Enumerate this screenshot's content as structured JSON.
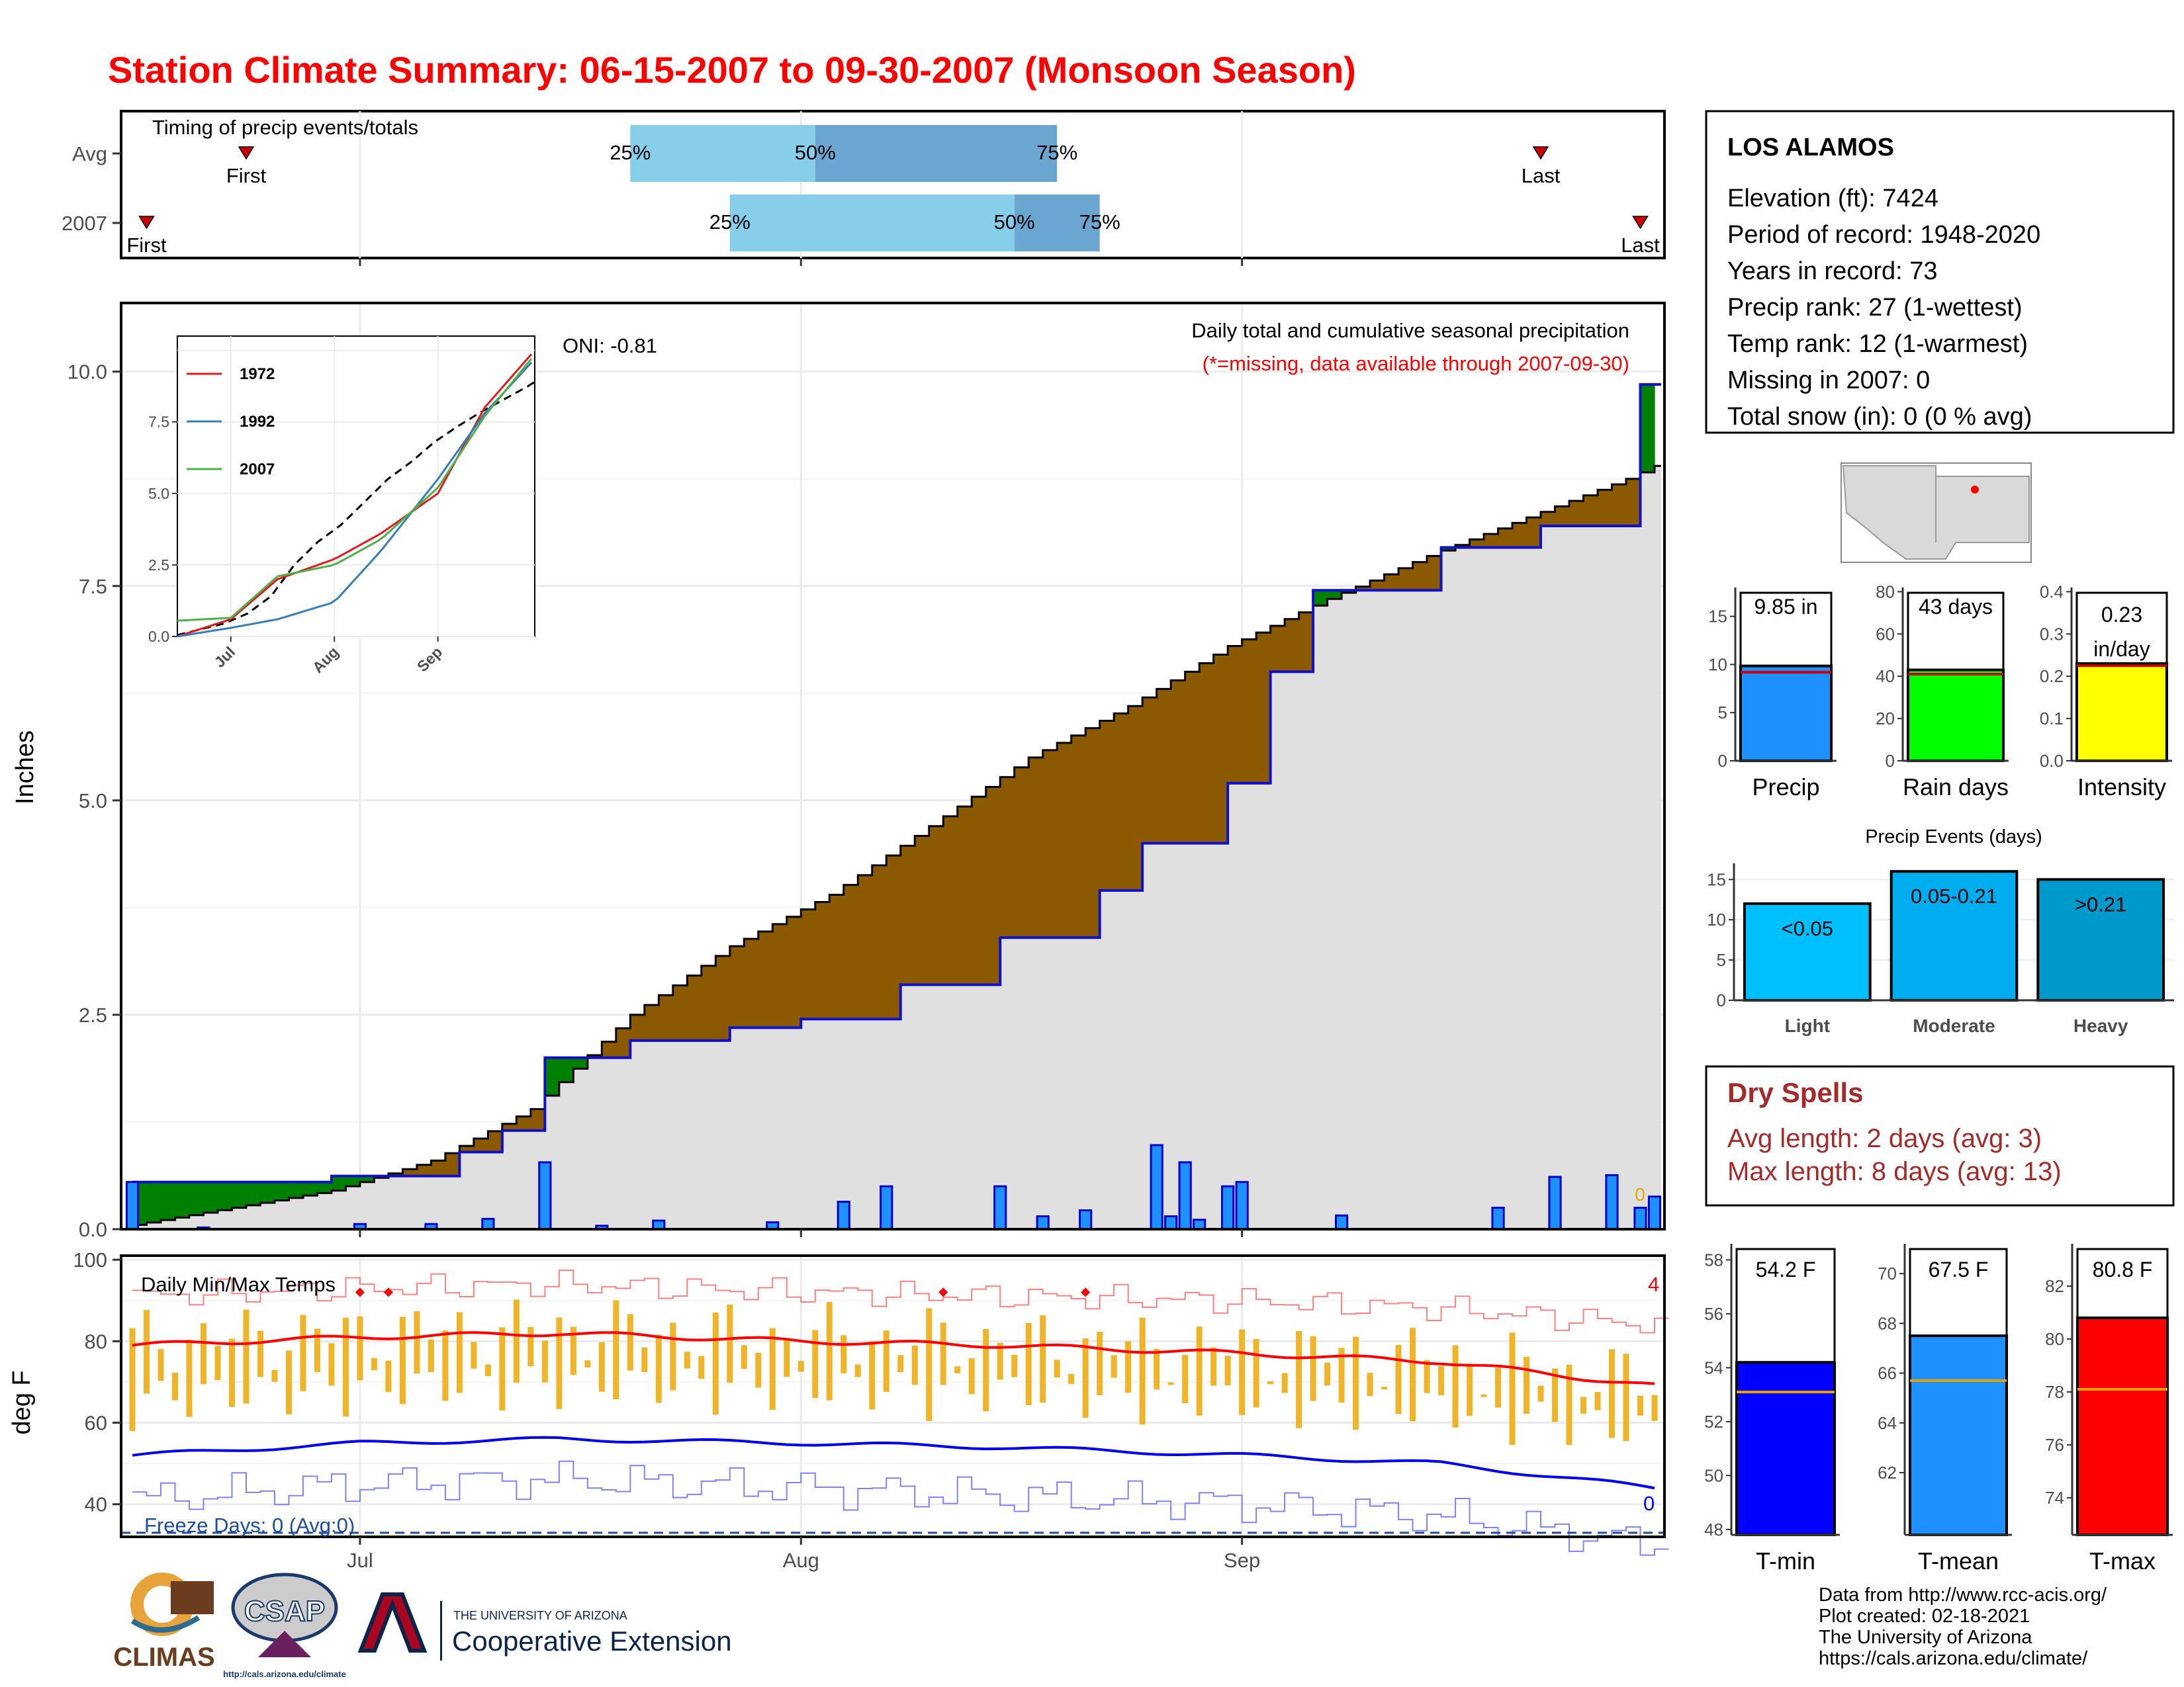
{
  "title": "Station Climate Summary: 06-15-2007 to 09-30-2007 (Monsoon Season)",
  "timing": {
    "title": "Timing of precip events/totals",
    "rows": [
      {
        "label": "Avg",
        "first": "06-23",
        "last": "09-22",
        "p25": "07-20",
        "p50": "08-02",
        "p75": "08-19",
        "first_label": "First",
        "last_label": "Last",
        "p25_label": "25%",
        "p50_label": "50%",
        "p75_label": "75%"
      },
      {
        "label": "2007",
        "first": "06-16",
        "last": "09-29",
        "p25": "07-27",
        "p50": "08-16",
        "p75": "08-22",
        "first_label": "First",
        "last_label": "Last",
        "p25_label": "25%",
        "p50_label": "50%",
        "p75_label": "75%"
      }
    ]
  },
  "main_panel": {
    "title": "Daily total and cumulative seasonal precipitation",
    "subtitle": "(*=missing, data available through 2007-09-30)",
    "oni": "ONI: -0.81",
    "ylabel": "Inches",
    "yticks": [
      "0.0",
      "2.5",
      "5.0",
      "7.5",
      "10.0"
    ],
    "yrange": [
      0,
      10.8
    ],
    "missing_count": "0"
  },
  "inset": {
    "yticks": [
      "0.0",
      "2.5",
      "5.0",
      "7.5"
    ],
    "xticks": [
      "Jul",
      "Aug",
      "Sep"
    ],
    "legend": [
      {
        "name": "1972",
        "color": "#e41a1c"
      },
      {
        "name": "1992",
        "color": "#377eb8"
      },
      {
        "name": "2007",
        "color": "#4daf4a"
      }
    ]
  },
  "temps": {
    "title": "Daily Min/Max Temps",
    "ylabel": "deg F",
    "yticks": [
      "40",
      "60",
      "80",
      "100"
    ],
    "freeze_text": "Freeze Days: 0 (Avg:0)",
    "freeze_count": "0",
    "record_count": "4",
    "xticks": [
      "Jul",
      "Aug",
      "Sep"
    ]
  },
  "station": {
    "name": "LOS ALAMOS",
    "lines": [
      "Elevation (ft): 7424",
      "Period of record: 1948-2020",
      "Years in record: 73",
      "Precip rank: 27 (1-wettest)",
      "Temp rank: 12 (1-warmest)",
      "Missing in 2007: 0",
      "Total snow (in): 0 (0 % avg)"
    ]
  },
  "summary_bars": [
    {
      "label": "Precip",
      "value_text": "9.85 in",
      "value": 9.85,
      "avg": 9.2,
      "ymax": 18,
      "ticks": [
        "0",
        "5",
        "10",
        "15"
      ],
      "color": "#1e90ff"
    },
    {
      "label": "Rain days",
      "value_text": "43 days",
      "value": 43,
      "avg": 41,
      "ymax": 82,
      "ticks": [
        "0",
        "20",
        "40",
        "60",
        "80"
      ],
      "color": "#00ff00"
    },
    {
      "label": "Intensity",
      "value_text_1": "0.23",
      "value_text_2": "in/day",
      "value": 0.23,
      "avg": 0.225,
      "ymax": 0.41,
      "ticks": [
        "0.0",
        "0.1",
        "0.2",
        "0.3",
        "0.4"
      ],
      "color": "#ffff00"
    }
  ],
  "precip_events": {
    "title": "Precip Events (days)",
    "ticks": [
      "0",
      "5",
      "10",
      "15"
    ],
    "ymax": 17,
    "bars": [
      {
        "label": "Light",
        "range": "<0.05",
        "value": 12,
        "color": "#00bfff"
      },
      {
        "label": "Moderate",
        "range": "0.05-0.21",
        "value": 16,
        "color": "#00aeef"
      },
      {
        "label": "Heavy",
        "range": ">0.21",
        "value": 15,
        "color": "#0099cc"
      }
    ]
  },
  "dry_spells": {
    "title": "Dry Spells",
    "lines": [
      "Avg length: 2 days (avg: 3)",
      "Max length: 8 days (avg: 13)"
    ]
  },
  "temp_bars": [
    {
      "label": "T-min",
      "value_text": "54.2 F",
      "value": 54.2,
      "avg": 53.1,
      "ymin": 47.8,
      "ymax": 58.6,
      "ticks": [
        "48",
        "50",
        "52",
        "54",
        "56",
        "58"
      ],
      "color": "#0000ff"
    },
    {
      "label": "T-mean",
      "value_text": "67.5 F",
      "value": 67.5,
      "avg": 65.7,
      "ymin": 59.5,
      "ymax": 71.2,
      "ticks": [
        "62",
        "64",
        "66",
        "68",
        "70"
      ],
      "color": "#1e90ff"
    },
    {
      "label": "T-max",
      "value_text": "80.8 F",
      "value": 80.8,
      "avg": 78.1,
      "ymin": 72.6,
      "ymax": 83.6,
      "ticks": [
        "74",
        "76",
        "78",
        "80",
        "82"
      ],
      "color": "#ff0000"
    }
  ],
  "footer": {
    "lines": [
      "Data from http://www.rcc-acis.org/",
      "Plot created: 02-18-2021",
      "The University of Arizona",
      "https://cals.arizona.edu/climate/"
    ],
    "logos": {
      "climas": "CLIMAS",
      "csap": "CSAP",
      "csap_url": "http://cals.arizona.edu/climate",
      "ua_small": "THE UNIVERSITY OF ARIZONA",
      "ua_big": "Cooperative Extension"
    }
  },
  "chart_data": [
    {
      "type": "area",
      "title": "Daily total and cumulative seasonal precipitation",
      "ylabel": "Inches",
      "ylim": [
        0,
        10.8
      ],
      "x_range": [
        "2007-06-15",
        "2007-09-30"
      ],
      "series": [
        {
          "name": "",
          "x": [
            "06-15",
            "06-22",
            "06-29",
            "07-06",
            "07-13",
            "07-20",
            "07-27",
            "08-03",
            "08-10",
            "08-17",
            "08-24",
            "08-31",
            "09-07",
            "09-14",
            "09-21",
            "09-28",
            "09-30"
          ],
          "values": [
            0.05,
            0.25,
            0.45,
            0.8,
            1.4,
            2.5,
            3.3,
            3.9,
            4.7,
            5.5,
            6.1,
            6.8,
            7.35,
            7.85,
            8.3,
            8.75,
            8.9
          ]
        },
        {
          "name": "",
          "x": [
            "06-15",
            "06-29",
            "07-08",
            "07-11",
            "07-14",
            "07-20",
            "07-27",
            "08-01",
            "08-08",
            "08-15",
            "08-22",
            "08-25",
            "08-31",
            "09-03",
            "09-06",
            "09-15",
            "09-22",
            "09-29"
          ],
          "values": [
            0.55,
            0.62,
            0.9,
            1.15,
            2.0,
            2.2,
            2.35,
            2.45,
            2.85,
            3.4,
            3.95,
            4.5,
            5.2,
            6.5,
            7.45,
            7.95,
            8.2,
            9.85
          ]
        },
        {
          "name": "",
          "x": [
            "06-15",
            "06-20",
            "06-27",
            "07-01",
            "07-06",
            "07-10",
            "07-14",
            "07-18",
            "07-22",
            "07-30",
            "08-04",
            "08-07",
            "08-15",
            "08-18",
            "08-21",
            "08-26",
            "08-27",
            "08-28",
            "08-29",
            "08-31",
            "09-01",
            "09-02",
            "09-03",
            "09-08",
            "09-12",
            "09-19",
            "09-23",
            "09-27",
            "09-29",
            "09-30"
          ],
          "values": [
            0.55,
            0.02,
            0.0,
            0.06,
            0.06,
            0.12,
            0.78,
            0.04,
            0.1,
            0.08,
            0.32,
            0.5,
            0.5,
            0.15,
            0.22,
            0.98,
            0.15,
            0.78,
            0.11,
            0.5,
            0.55,
            0.0,
            0.0,
            0.16,
            0.0,
            0.25,
            0.61,
            0.63,
            0.25,
            0.38
          ]
        }
      ]
    },
    {
      "type": "line",
      "title": "",
      "x_range": [
        "06-15",
        "09-30"
      ],
      "series": [
        {
          "name": "1972",
          "x": [
            "06-15",
            "07-01",
            "07-15",
            "08-01",
            "08-15",
            "09-01",
            "09-15",
            "09-30"
          ],
          "values": [
            0.0,
            0.6,
            2.0,
            2.7,
            3.6,
            5.0,
            8.0,
            10.0
          ]
        },
        {
          "name": "1992",
          "x": [
            "06-15",
            "07-01",
            "07-15",
            "08-01",
            "08-15",
            "09-01",
            "09-15",
            "09-30"
          ],
          "values": [
            0.0,
            0.3,
            0.6,
            1.2,
            3.0,
            5.5,
            7.8,
            9.7
          ]
        },
        {
          "name": "2007",
          "x": [
            "06-15",
            "07-01",
            "07-15",
            "08-01",
            "08-15",
            "09-01",
            "09-15",
            "09-30"
          ],
          "values": [
            0.55,
            0.65,
            2.1,
            2.5,
            3.4,
            5.2,
            7.7,
            9.85
          ]
        }
      ]
    },
    {
      "type": "line",
      "title": "Daily Min/Max Temps",
      "ylabel": "deg F",
      "ylim": [
        32,
        100
      ],
      "x_range": [
        "2007-06-15",
        "2007-09-30"
      ],
      "series": [
        {
          "name": "",
          "x": [
            "06-15",
            "07-01",
            "07-15",
            "08-01",
            "08-15",
            "09-01",
            "09-15",
            "09-30"
          ],
          "values": [
            79,
            81,
            82,
            80,
            79,
            77,
            75,
            69
          ]
        },
        {
          "name": "",
          "x": [
            "06-15",
            "07-01",
            "07-15",
            "08-01",
            "08-15",
            "09-01",
            "09-15",
            "09-30"
          ],
          "values": [
            52,
            55,
            56,
            55,
            54,
            52,
            50,
            44
          ]
        },
        {
          "name": "",
          "x": [
            "06-15",
            "07-01",
            "07-15",
            "08-01",
            "08-15",
            "09-01",
            "09-15",
            "09-30"
          ],
          "values": [
            91,
            93,
            94,
            92,
            91,
            90,
            88,
            84
          ]
        },
        {
          "name": "",
          "x": [
            "06-15",
            "07-01",
            "07-15",
            "08-01",
            "08-15",
            "09-01",
            "09-15",
            "09-30"
          ],
          "values": [
            41,
            45,
            46,
            44,
            42,
            40,
            37,
            30
          ]
        }
      ]
    }
  ]
}
